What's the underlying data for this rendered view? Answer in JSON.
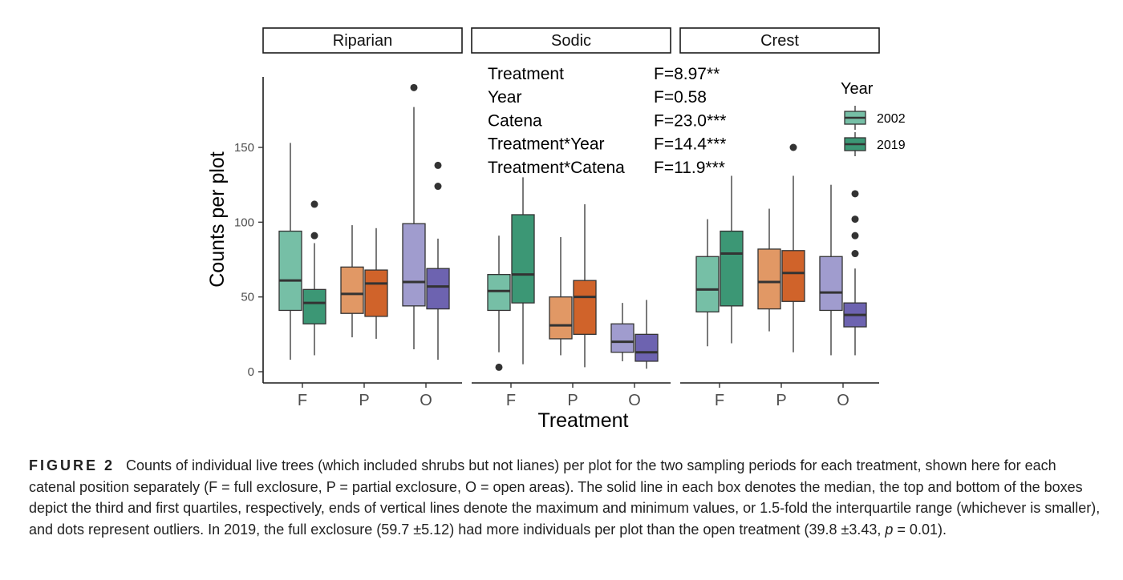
{
  "chart_data": {
    "type": "box",
    "y_label": "Counts per plot",
    "x_label": "Treatment",
    "y_range": [
      0,
      190
    ],
    "y_ticks": [
      0,
      50,
      100,
      150
    ],
    "categories": [
      "F",
      "P",
      "O"
    ],
    "legend": {
      "title": "Year",
      "entries": [
        "2002",
        "2019"
      ],
      "position": "right"
    },
    "treatment_colors": {
      "F": {
        "2002": "#76bfa6",
        "2019": "#3c9775"
      },
      "P": {
        "2002": "#e19865",
        "2019": "#d0632a"
      },
      "O": {
        "2002": "#a09cce",
        "2019": "#6d63b0"
      }
    },
    "legend_colors": {
      "2002": "#76bfa6",
      "2019": "#3c9775"
    },
    "panels": [
      {
        "name": "Riparian",
        "boxes": [
          {
            "treatment": "F",
            "year": "2002",
            "min": 8,
            "q1": 41,
            "median": 61,
            "q3": 94,
            "max": 153,
            "outliers": []
          },
          {
            "treatment": "F",
            "year": "2019",
            "min": 11,
            "q1": 32,
            "median": 46,
            "q3": 55,
            "max": 86,
            "outliers": [
              91,
              112
            ]
          },
          {
            "treatment": "P",
            "year": "2002",
            "min": 23,
            "q1": 39,
            "median": 52,
            "q3": 70,
            "max": 98,
            "outliers": []
          },
          {
            "treatment": "P",
            "year": "2019",
            "min": 22,
            "q1": 37,
            "median": 59,
            "q3": 68,
            "max": 96,
            "outliers": []
          },
          {
            "treatment": "O",
            "year": "2002",
            "min": 15,
            "q1": 44,
            "median": 60,
            "q3": 99,
            "max": 177,
            "outliers": [
              190
            ]
          },
          {
            "treatment": "O",
            "year": "2019",
            "min": 8,
            "q1": 42,
            "median": 57,
            "q3": 69,
            "max": 89,
            "outliers": [
              124,
              138
            ]
          }
        ]
      },
      {
        "name": "Sodic",
        "stats": [
          {
            "term": "Treatment",
            "value": "F=8.97**"
          },
          {
            "term": "Year",
            "value": "F=0.58"
          },
          {
            "term": "Catena",
            "value": "F=23.0***"
          },
          {
            "term": "Treatment*Year",
            "value": "F=14.4***"
          },
          {
            "term": "Treatment*Catena",
            "value": "F=11.9***"
          }
        ],
        "boxes": [
          {
            "treatment": "F",
            "year": "2002",
            "min": 13,
            "q1": 41,
            "median": 54,
            "q3": 65,
            "max": 91,
            "outliers": [
              3
            ]
          },
          {
            "treatment": "F",
            "year": "2019",
            "min": 5,
            "q1": 46,
            "median": 65,
            "q3": 105,
            "max": 130,
            "outliers": []
          },
          {
            "treatment": "P",
            "year": "2002",
            "min": 11,
            "q1": 22,
            "median": 31,
            "q3": 50,
            "max": 90,
            "outliers": []
          },
          {
            "treatment": "P",
            "year": "2019",
            "min": 3,
            "q1": 25,
            "median": 50,
            "q3": 61,
            "max": 112,
            "outliers": []
          },
          {
            "treatment": "O",
            "year": "2002",
            "min": 7,
            "q1": 13,
            "median": 20,
            "q3": 32,
            "max": 46,
            "outliers": []
          },
          {
            "treatment": "O",
            "year": "2019",
            "min": 2,
            "q1": 7,
            "median": 13,
            "q3": 25,
            "max": 48,
            "outliers": []
          }
        ]
      },
      {
        "name": "Crest",
        "boxes": [
          {
            "treatment": "F",
            "year": "2002",
            "min": 17,
            "q1": 40,
            "median": 55,
            "q3": 77,
            "max": 102,
            "outliers": []
          },
          {
            "treatment": "F",
            "year": "2019",
            "min": 19,
            "q1": 44,
            "median": 79,
            "q3": 94,
            "max": 131,
            "outliers": []
          },
          {
            "treatment": "P",
            "year": "2002",
            "min": 27,
            "q1": 42,
            "median": 60,
            "q3": 82,
            "max": 109,
            "outliers": []
          },
          {
            "treatment": "P",
            "year": "2019",
            "min": 13,
            "q1": 47,
            "median": 66,
            "q3": 81,
            "max": 131,
            "outliers": [
              150
            ]
          },
          {
            "treatment": "O",
            "year": "2002",
            "min": 11,
            "q1": 41,
            "median": 53,
            "q3": 77,
            "max": 125,
            "outliers": []
          },
          {
            "treatment": "O",
            "year": "2019",
            "min": 11,
            "q1": 30,
            "median": 38,
            "q3": 46,
            "max": 69,
            "outliers": [
              79,
              91,
              102,
              119
            ]
          }
        ]
      }
    ]
  },
  "caption": {
    "label": "FIGURE 2",
    "text_before_p": "Counts of individual live trees (which included shrubs but not lianes) per plot for the two sampling periods for each treatment, shown here for each catenal position separately (F = full exclosure, P = partial exclosure, O = open areas). The solid line in each box denotes the median, the top and bottom of the boxes depict the third and first quartiles, respectively, ends of vertical lines denote the maximum and minimum values, or 1.5-fold the interquartile range (whichever is smaller), and dots represent outliers. In 2019, the full exclosure (59.7 ±5.12) had more individuals per plot than the open treatment (39.8 ±3.43, ",
    "p_symbol": "p",
    "text_after_p": " = 0.01)."
  }
}
